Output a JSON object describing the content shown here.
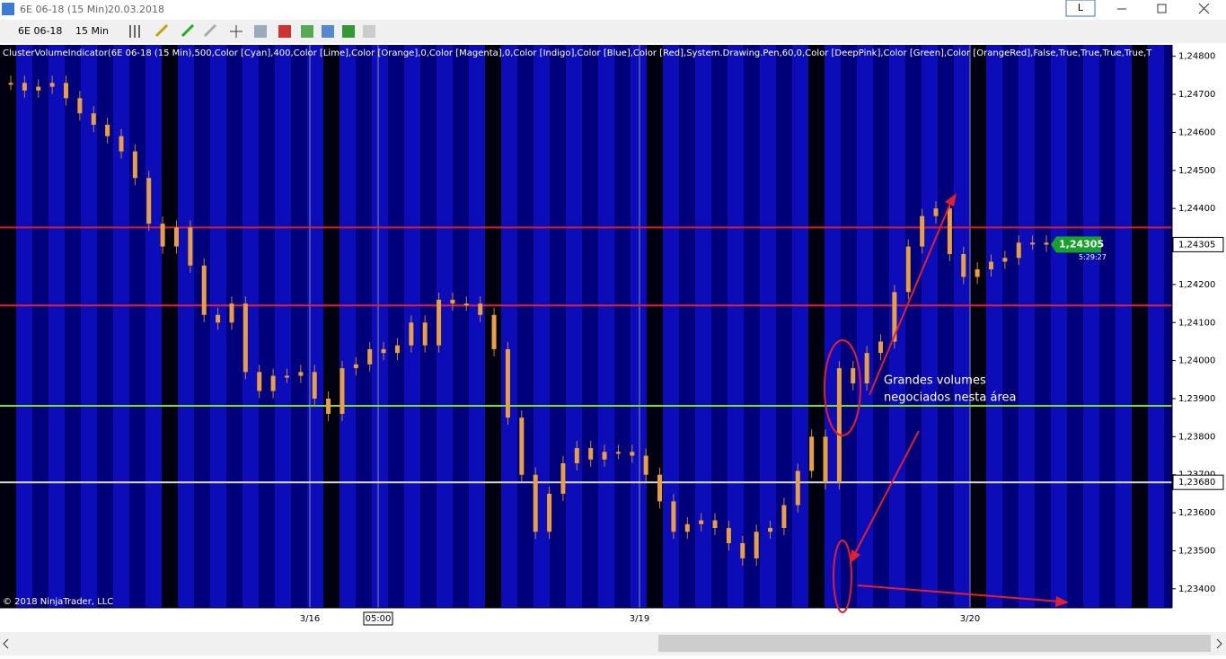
{
  "window": {
    "title": "6E 06-18 (15 Min)",
    "date": "20.03.2018",
    "button": "L"
  },
  "toolbar": {
    "instrument": "6E 06-18",
    "period": "15 Min"
  },
  "chart": {
    "indicator": "ClusterVolumeIndicator(6E 06-18 (15 Min),500,Color [Cyan],400,Color [Lime],Color [Orange],0,Color [Magenta],0,Color [Indigo],Color [Blue],Color [Red],System.Drawing.Pen,60,0,Color [DeepPink],Color [Green],Color [OrangeRed],False,True,True,True,True,T",
    "copyright": "© 2018 NinjaTrader, LLC",
    "ylim": [
      1.2335,
      1.2483
    ],
    "yticks": [
      {
        "value": 1.248,
        "label": "1,24800"
      },
      {
        "value": 1.247,
        "label": "1,24700"
      },
      {
        "value": 1.246,
        "label": "1,24600"
      },
      {
        "value": 1.245,
        "label": "1,24500"
      },
      {
        "value": 1.244,
        "label": "1,24400"
      },
      {
        "value": 1.243,
        "label": "1,24300"
      },
      {
        "value": 1.242,
        "label": "1,24200"
      },
      {
        "value": 1.241,
        "label": "1,24100"
      },
      {
        "value": 1.24,
        "label": "1,24000"
      },
      {
        "value": 1.239,
        "label": "1,23900"
      },
      {
        "value": 1.238,
        "label": "1,23800"
      },
      {
        "value": 1.237,
        "label": "1,23700"
      },
      {
        "value": 1.236,
        "label": "1,23600"
      },
      {
        "value": 1.235,
        "label": "1,23500"
      },
      {
        "value": 1.234,
        "label": "1,23400"
      }
    ],
    "xlabels": [
      "3/16",
      "05:00",
      "3/19",
      "3/20"
    ],
    "levels": [
      {
        "value": 1.2435,
        "color": "#d02030"
      },
      {
        "value": 1.24145,
        "color": "#e0203a"
      },
      {
        "value": 1.23881,
        "color": "#7fe020"
      },
      {
        "value": 1.2368,
        "color": "#d8d8d8",
        "label": "1,23680"
      }
    ],
    "current_price": {
      "value": 1.24305,
      "label": "1,24305",
      "time": "5:29:27"
    },
    "close": [
      1.2473,
      1.2471,
      1.2472,
      1.2473,
      1.2469,
      1.2465,
      1.2462,
      1.2459,
      1.2455,
      1.2448,
      1.2436,
      1.243,
      1.2435,
      1.2425,
      1.2412,
      1.241,
      1.2415,
      1.2397,
      1.2392,
      1.2396,
      1.2396,
      1.2397,
      1.239,
      1.2386,
      1.2398,
      1.2399,
      1.2403,
      1.2402,
      1.2404,
      1.241,
      1.2404,
      1.2416,
      1.2415,
      1.2415,
      1.2412,
      1.2403,
      1.2385,
      1.237,
      1.2355,
      1.2365,
      1.2373,
      1.2377,
      1.2374,
      1.2376,
      1.2376,
      1.2375,
      1.237,
      1.2363,
      1.2355,
      1.2357,
      1.2358,
      1.2356,
      1.2352,
      1.2348,
      1.2355,
      1.2356,
      1.2362,
      1.2371,
      1.238,
      1.2368,
      1.2398,
      1.2394,
      1.2402,
      1.2405,
      1.2418,
      1.243,
      1.2438,
      1.244,
      1.2428,
      1.2422,
      1.2424,
      1.2426,
      1.2427,
      1.2431,
      1.2431,
      1.24305
    ],
    "annotation": [
      "Grandes volumes",
      "negociados nesta área"
    ]
  }
}
